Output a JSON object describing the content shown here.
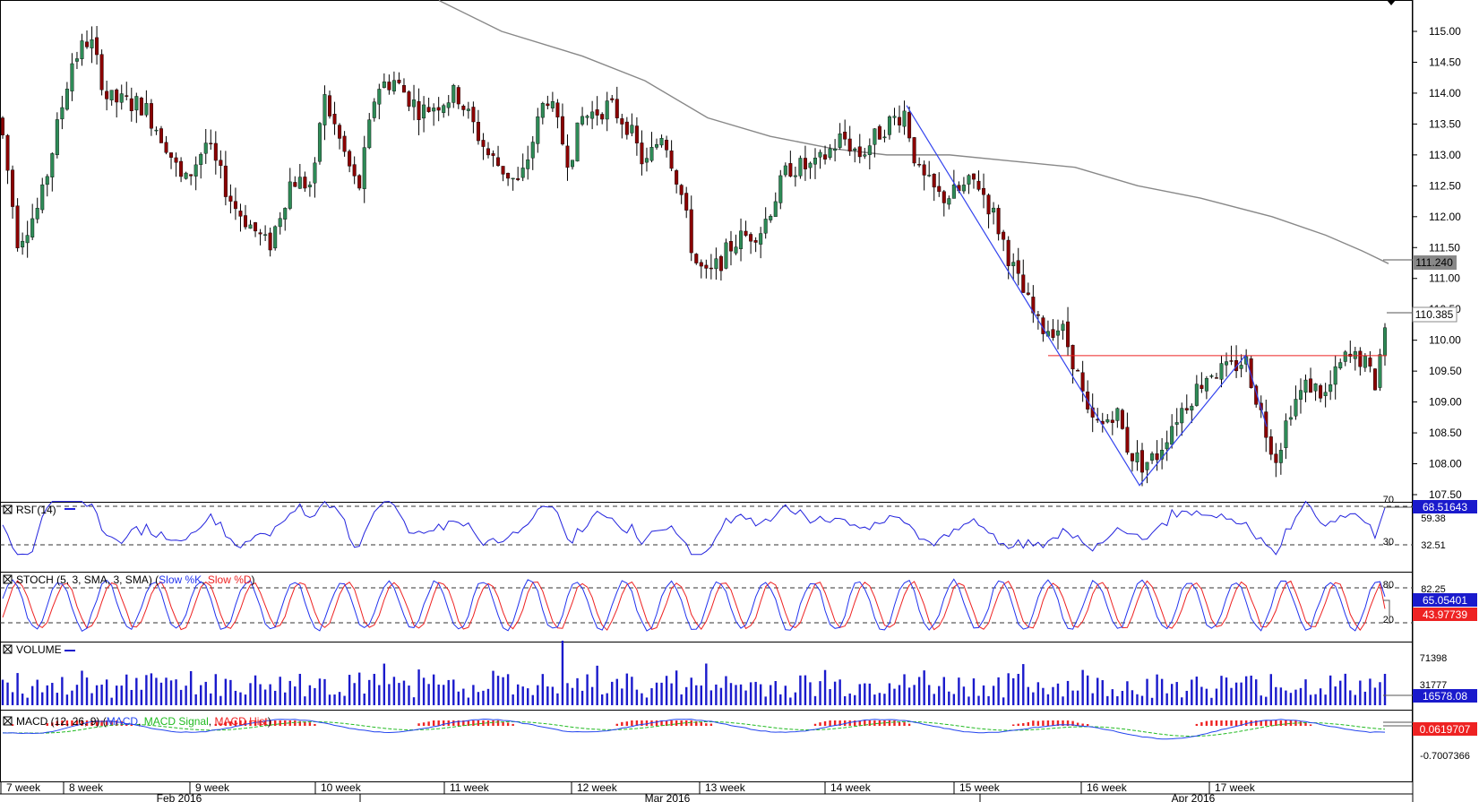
{
  "chart_data": {
    "type": "candlestick",
    "main": {
      "y_ticks": [
        "115.00",
        "114.50",
        "114.00",
        "113.50",
        "113.00",
        "112.50",
        "112.00",
        "111.50",
        "111.00",
        "110.50",
        "110.00",
        "109.50",
        "109.00",
        "108.50",
        "108.00",
        "107.50"
      ],
      "ylim": [
        107.3,
        115.5
      ],
      "price_label": "110.385",
      "ma_label": "111.240",
      "ma_value": 111.24,
      "resistance_level": 109.75,
      "zigzag": [
        {
          "x": 1012,
          "y": 113.8
        },
        {
          "x": 1272,
          "y": 107.65
        },
        {
          "x": 1390,
          "y": 109.75
        },
        {
          "x": 1414,
          "y": 108.6
        }
      ]
    },
    "rsi": {
      "title": "RSI (14)",
      "levels": [
        "70",
        "30"
      ],
      "values_label": [
        "68.51643",
        "59.38",
        "32.51"
      ]
    },
    "stoch": {
      "title_prefix": "STOCH (5, 3, SMA, 3, SMA)",
      "k_label": "Slow %K",
      "d_label": "Slow %D",
      "levels": [
        "80",
        "20"
      ],
      "extra_label": "82.25",
      "k_value": "65.05401",
      "d_value": "43.97739"
    },
    "volume": {
      "title": "VOLUME",
      "ticks": [
        "71398",
        "31777"
      ],
      "value": "16578.08"
    },
    "macd": {
      "title_prefix": "MACD (12, 26, 9)",
      "macd_label": "MACD",
      "signal_label": "MACD Signal",
      "hist_label": "MACD Hist",
      "value": "0.0619707",
      "tick": "-0.7007366"
    },
    "x_week_labels": [
      "7 week",
      "8 week",
      "9 week",
      "10 week",
      "11 week",
      "12 week",
      "13 week",
      "14 week",
      "15 week",
      "16 week",
      "17 week"
    ],
    "x_month_labels": [
      "Feb 2016",
      "Mar 2016",
      "Apr 2016"
    ],
    "colors": {
      "up": "#2e8b57",
      "down": "#8b0000",
      "ma": "#888888",
      "zigzag": "#3344ee",
      "resistance": "#ee2222",
      "rsi": "#2222dd",
      "stoch_k": "#2233ee",
      "stoch_d": "#ee2222",
      "volume": "#1a1acc",
      "macd": "#2244ee",
      "signal": "#22bb22",
      "hist": "#ee2222"
    }
  }
}
